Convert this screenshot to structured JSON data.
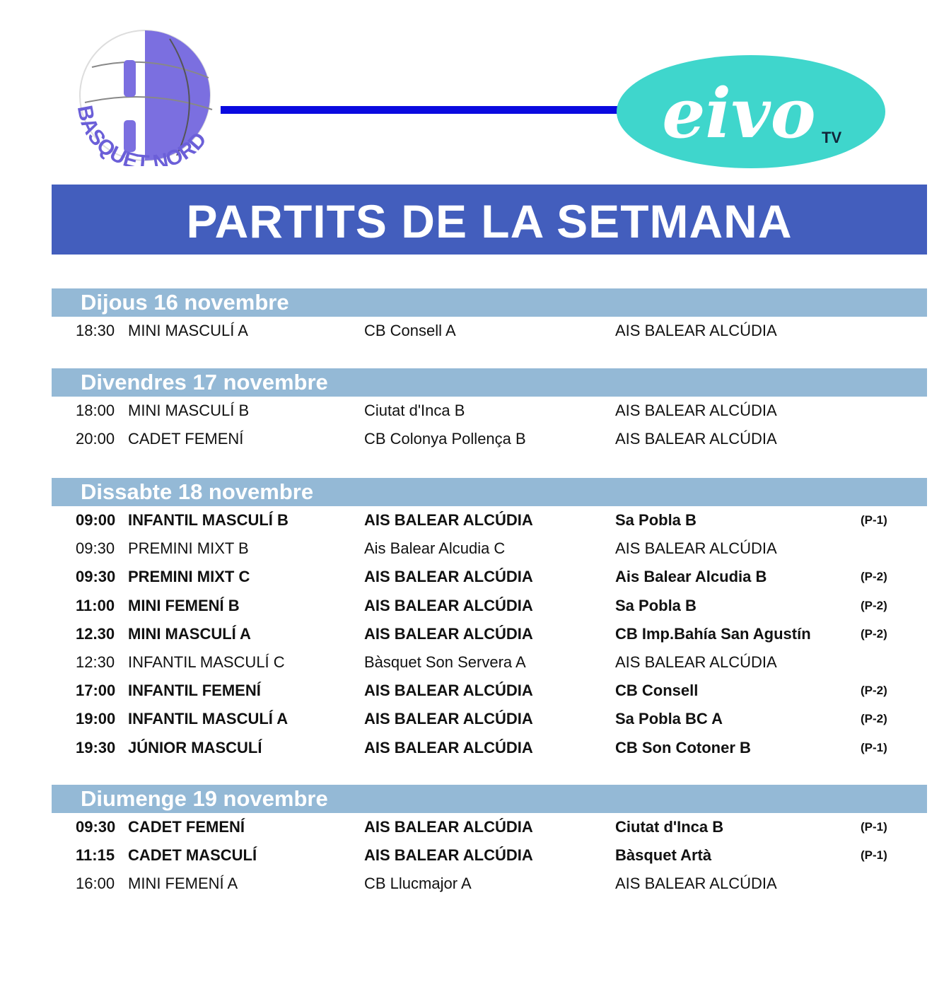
{
  "logos": {
    "left": {
      "text": "BASQUET NORD",
      "color": "#7b6fe0"
    },
    "right": {
      "text": "eivo",
      "suffix": "TV",
      "color": "#3fd6cc"
    },
    "connector_color": "#0a0ae0"
  },
  "title": "PARTITS DE LA SETMANA",
  "colors": {
    "title_bar": "#435ebd",
    "day_header": "#94b9d6"
  },
  "days": [
    {
      "label": "Dijous 16 novembre",
      "matches": [
        {
          "time": "18:30",
          "category": "MINI MASCULÍ A",
          "home": "CB Consell A",
          "away": "AIS BALEAR ALCÚDIA",
          "court": "",
          "bold": false
        }
      ]
    },
    {
      "label": "Divendres 17 novembre",
      "matches": [
        {
          "time": "18:00",
          "category": "MINI MASCULÍ B",
          "home": "Ciutat d'Inca B",
          "away": "AIS BALEAR ALCÚDIA",
          "court": "",
          "bold": false
        },
        {
          "time": "20:00",
          "category": "CADET FEMENÍ",
          "home": "CB Colonya Pollença B",
          "away": "AIS BALEAR ALCÚDIA",
          "court": "",
          "bold": false
        }
      ]
    },
    {
      "label": "Dissabte 18 novembre",
      "matches": [
        {
          "time": "09:00",
          "category": "INFANTIL MASCULÍ B",
          "home": "AIS BALEAR ALCÚDIA",
          "away": "Sa Pobla B",
          "court": "(P-1)",
          "bold": true
        },
        {
          "time": "09:30",
          "category": "PREMINI MIXT B",
          "home": "Ais Balear Alcudia C",
          "away": "AIS BALEAR ALCÚDIA",
          "court": "",
          "bold": false
        },
        {
          "time": "09:30",
          "category": "PREMINI MIXT C",
          "home": "AIS BALEAR ALCÚDIA",
          "away": "Ais Balear Alcudia B",
          "court": "(P-2)",
          "bold": true
        },
        {
          "time": "11:00",
          "category": "MINI FEMENÍ B",
          "home": "AIS BALEAR ALCÚDIA",
          "away": "Sa Pobla B",
          "court": "(P-2)",
          "bold": true
        },
        {
          "time": "12.30",
          "category": "MINI MASCULÍ A",
          "home": "AIS BALEAR ALCÚDIA",
          "away": "CB Imp.Bahía San Agustín",
          "court": "(P-2)",
          "bold": true
        },
        {
          "time": "12:30",
          "category": "INFANTIL MASCULÍ C",
          "home": "Bàsquet Son Servera A",
          "away": "AIS BALEAR ALCÚDIA",
          "court": "",
          "bold": false
        },
        {
          "time": "17:00",
          "category": "INFANTIL FEMENÍ",
          "home": "AIS BALEAR ALCÚDIA",
          "away": "CB Consell",
          "court": "(P-2)",
          "bold": true
        },
        {
          "time": "19:00",
          "category": "INFANTIL MASCULÍ A",
          "home": "AIS BALEAR ALCÚDIA",
          "away": "Sa Pobla BC A",
          "court": "(P-2)",
          "bold": true
        },
        {
          "time": "19:30",
          "category": "JÚNIOR MASCULÍ",
          "home": "AIS BALEAR ALCÚDIA",
          "away": "CB Son Cotoner B",
          "court": "(P-1)",
          "bold": true
        }
      ]
    },
    {
      "label": "Diumenge 19 novembre",
      "matches": [
        {
          "time": "09:30",
          "category": "CADET FEMENÍ",
          "home": "AIS BALEAR ALCÚDIA",
          "away": "Ciutat d'Inca B",
          "court": "(P-1)",
          "bold": true
        },
        {
          "time": "11:15",
          "category": "CADET MASCULÍ",
          "home": "AIS BALEAR ALCÚDIA",
          "away": "Bàsquet Artà",
          "court": "(P-1)",
          "bold": true
        },
        {
          "time": "16:00",
          "category": "MINI FEMENÍ A",
          "home": "CB Llucmajor A",
          "away": "AIS BALEAR ALCÚDIA",
          "court": "",
          "bold": false
        }
      ]
    }
  ]
}
